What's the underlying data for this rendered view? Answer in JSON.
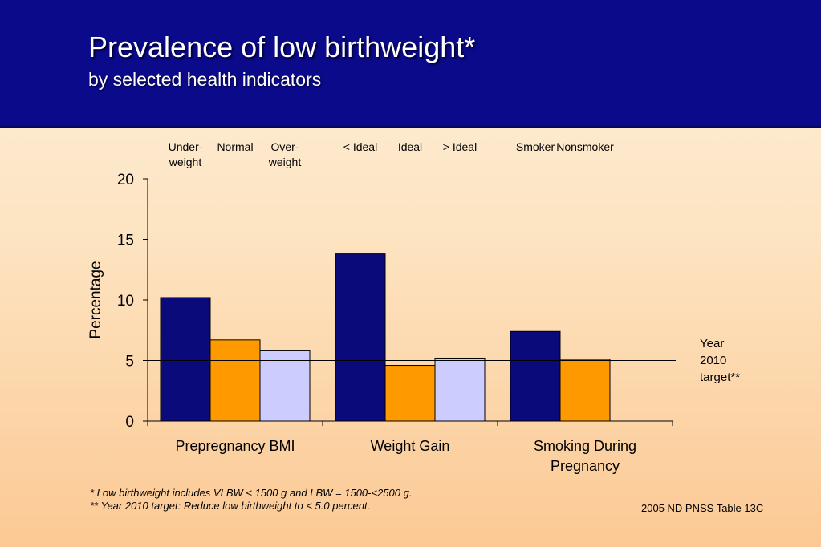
{
  "header": {
    "title": "Prevalence of low birthweight*",
    "subtitle": "by selected health indicators"
  },
  "chart_data": {
    "type": "bar",
    "categories": [
      "Prepregnancy BMI",
      "Weight Gain",
      "Smoking During Pregnancy"
    ],
    "category_lines": [
      [
        "Prepregnancy BMI"
      ],
      [
        "Weight Gain"
      ],
      [
        "Smoking During",
        "Pregnancy"
      ]
    ],
    "groups": [
      {
        "category": "Prepregnancy BMI",
        "bars": [
          {
            "label_lines": [
              "Under-",
              "weight"
            ],
            "value": 10.2,
            "color": "#0a0a7a"
          },
          {
            "label_lines": [
              "Normal"
            ],
            "value": 6.7,
            "color": "#ff9900"
          },
          {
            "label_lines": [
              "Over-",
              "weight"
            ],
            "value": 5.8,
            "color": "#ccccff"
          }
        ]
      },
      {
        "category": "Weight Gain",
        "bars": [
          {
            "label_lines": [
              "< Ideal"
            ],
            "value": 13.8,
            "color": "#0a0a7a"
          },
          {
            "label_lines": [
              "Ideal"
            ],
            "value": 4.6,
            "color": "#ff9900"
          },
          {
            "label_lines": [
              "> Ideal"
            ],
            "value": 5.2,
            "color": "#ccccff"
          }
        ]
      },
      {
        "category": "Smoking During Pregnancy",
        "bars": [
          {
            "label_lines": [
              "Smoker"
            ],
            "value": 7.4,
            "color": "#0a0a7a"
          },
          {
            "label_lines": [
              "Nonsmoker"
            ],
            "value": 5.1,
            "color": "#ff9900"
          }
        ]
      }
    ],
    "ylabel": "Percentage",
    "ylim": [
      0,
      20
    ],
    "yticks": [
      0,
      5,
      10,
      15,
      20
    ],
    "target": {
      "value": 5.0,
      "label_lines": [
        "Year",
        "2010",
        "target**"
      ]
    },
    "grid": false
  },
  "footnotes": [
    "*    Low birthweight includes VLBW < 1500 g and LBW = 1500-<2500 g.",
    "**  Year 2010 target: Reduce low birthweight to < 5.0 percent."
  ],
  "source": "2005 ND PNSS Table 13C"
}
